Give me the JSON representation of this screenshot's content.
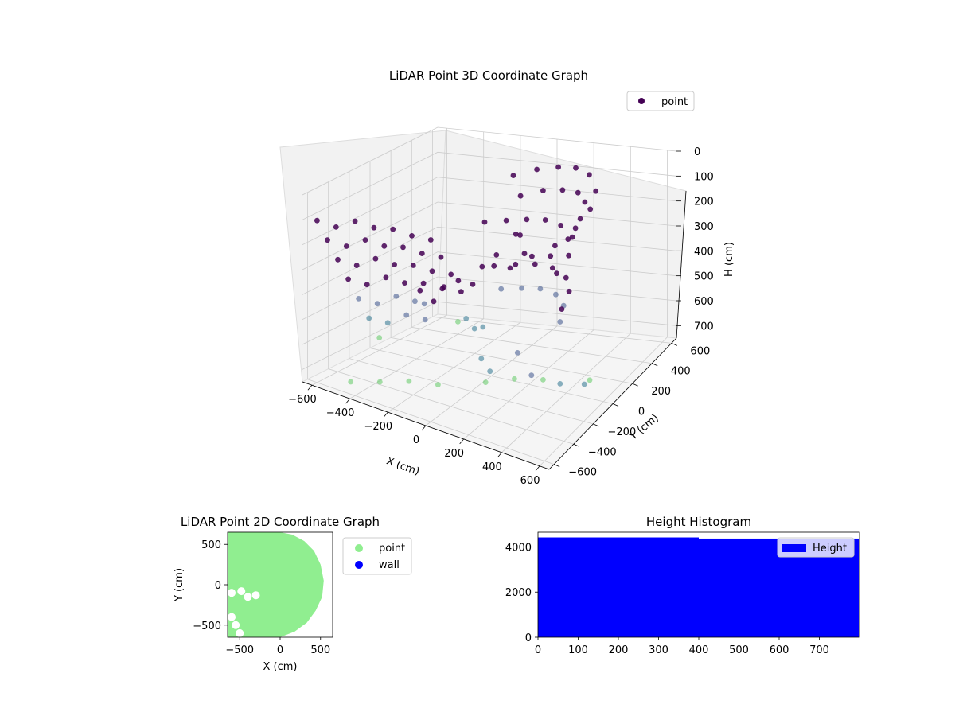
{
  "colors": {
    "background": "#ffffff",
    "pane": "#f2f2f2",
    "grid": "#cccccc",
    "point_top": "#440154",
    "point_mid": "#31688e",
    "point_low": "#35b779",
    "scatter2d_point": "#90ee90",
    "scatter2d_wall": "#0000ff",
    "histogram": "#0000ff"
  },
  "chart_data": [
    {
      "type": "scatter3d",
      "title": "LiDAR Point 3D Coordinate Graph",
      "xlabel": "X (cm)",
      "ylabel": "Y (cm)",
      "zlabel": "H (cm)",
      "xlim": [
        -650,
        650
      ],
      "ylim": [
        -650,
        650
      ],
      "zlim": [
        750,
        0
      ],
      "z_axis_inverted": true,
      "xticks": [
        "−600",
        "−400",
        "−200",
        "0",
        "200",
        "400",
        "600"
      ],
      "yticks": [
        "−600",
        "−400",
        "−200",
        "0",
        "200",
        "400",
        "600"
      ],
      "zticks": [
        "0",
        "100",
        "200",
        "300",
        "400",
        "500",
        "600",
        "700"
      ],
      "legend": {
        "position": "top-right",
        "entries": [
          {
            "label": "point",
            "color": "#440154"
          }
        ]
      },
      "colormap": "viridis",
      "series": [
        {
          "name": "point",
          "description_free": true,
          "points": [
            [
              -600,
              -600,
              100
            ],
            [
              -600,
              -500,
              200
            ],
            [
              -600,
              -400,
              300
            ],
            [
              -600,
              -300,
              400
            ],
            [
              -600,
              -200,
              500
            ],
            [
              -600,
              -100,
              600
            ],
            [
              -600,
              0,
              700
            ],
            [
              -500,
              -600,
              100
            ],
            [
              -500,
              -500,
              200
            ],
            [
              -500,
              -400,
              300
            ],
            [
              -500,
              -300,
              400
            ],
            [
              -500,
              -200,
              500
            ],
            [
              -500,
              -100,
              600
            ],
            [
              -400,
              -600,
              50
            ],
            [
              -400,
              -500,
              150
            ],
            [
              -400,
              -400,
              250
            ],
            [
              -400,
              -300,
              350
            ],
            [
              -400,
              -200,
              450
            ],
            [
              -400,
              -100,
              550
            ],
            [
              -300,
              -600,
              50
            ],
            [
              -300,
              -500,
              150
            ],
            [
              -300,
              -400,
              250
            ],
            [
              -300,
              -300,
              350
            ],
            [
              -300,
              -200,
              450
            ],
            [
              -300,
              -100,
              550
            ],
            [
              -200,
              -600,
              30
            ],
            [
              -200,
              -500,
              130
            ],
            [
              -200,
              -400,
              230
            ],
            [
              -200,
              -300,
              330
            ],
            [
              -200,
              -200,
              430
            ],
            [
              -100,
              -600,
              30
            ],
            [
              -100,
              -500,
              130
            ],
            [
              -100,
              -400,
              230
            ],
            [
              -100,
              -300,
              330
            ],
            [
              0,
              -600,
              20
            ],
            [
              0,
              -500,
              120
            ],
            [
              0,
              -400,
              220
            ],
            [
              0,
              -300,
              320
            ],
            [
              -100,
              400,
              80
            ],
            [
              0,
              450,
              60
            ],
            [
              100,
              480,
              50
            ],
            [
              200,
              470,
              40
            ],
            [
              300,
              420,
              40
            ],
            [
              400,
              300,
              50
            ],
            [
              450,
              150,
              60
            ],
            [
              450,
              0,
              80
            ],
            [
              420,
              -150,
              100
            ],
            [
              350,
              -250,
              120
            ],
            [
              -50,
              380,
              150
            ],
            [
              50,
              420,
              130
            ],
            [
              150,
              430,
              120
            ],
            [
              250,
              400,
              110
            ],
            [
              330,
              320,
              110
            ],
            [
              380,
              180,
              120
            ],
            [
              400,
              20,
              140
            ],
            [
              380,
              -120,
              160
            ],
            [
              -200,
              300,
              250
            ],
            [
              -100,
              330,
              240
            ],
            [
              0,
              350,
              230
            ],
            [
              100,
              350,
              220
            ],
            [
              200,
              320,
              220
            ],
            [
              300,
              250,
              230
            ],
            [
              350,
              120,
              250
            ],
            [
              360,
              -20,
              270
            ],
            [
              100,
              100,
              200
            ],
            [
              150,
              50,
              250
            ],
            [
              50,
              150,
              220
            ],
            [
              100,
              0,
              300
            ],
            [
              0,
              50,
              280
            ],
            [
              -50,
              0,
              320
            ],
            [
              -200,
              -100,
              400
            ],
            [
              -150,
              -50,
              380
            ],
            [
              -100,
              0,
              400
            ],
            [
              -300,
              -150,
              420
            ],
            [
              -250,
              -200,
              450
            ],
            [
              -150,
              300,
              420
            ],
            [
              -50,
              330,
              410
            ],
            [
              50,
              340,
              400
            ],
            [
              150,
              330,
              400
            ],
            [
              250,
              280,
              410
            ],
            [
              320,
              180,
              420
            ],
            [
              350,
              50,
              440
            ],
            [
              -100,
              280,
              500
            ],
            [
              0,
              300,
              490
            ],
            [
              100,
              300,
              480
            ],
            [
              200,
              270,
              480
            ],
            [
              280,
              200,
              490
            ],
            [
              320,
              90,
              510
            ],
            [
              300,
              -300,
              500
            ],
            [
              400,
              -350,
              550
            ],
            [
              500,
              -250,
              600
            ],
            [
              550,
              -100,
              650
            ],
            [
              500,
              50,
              700
            ],
            [
              -400,
              400,
              700
            ],
            [
              -300,
              300,
              650
            ],
            [
              -200,
              200,
              650
            ],
            [
              -100,
              100,
              600
            ],
            [
              0,
              -100,
              650
            ],
            [
              100,
              -200,
              650
            ],
            [
              -450,
              -550,
              720
            ],
            [
              -350,
              -450,
              720
            ],
            [
              -250,
              -350,
              720
            ],
            [
              -150,
              -250,
              740
            ],
            [
              50,
              -150,
              720
            ],
            [
              150,
              -50,
              720
            ],
            [
              250,
              50,
              740
            ]
          ]
        }
      ]
    },
    {
      "type": "scatter",
      "title": "LiDAR Point 2D Coordinate Graph",
      "xlabel": "X (cm)",
      "ylabel": "Y (cm)",
      "xlim": [
        -650,
        650
      ],
      "ylim": [
        -650,
        650
      ],
      "xticks": [
        "−500",
        "0",
        "500"
      ],
      "yticks": [
        "−500",
        "0",
        "500"
      ],
      "legend": {
        "position": "outside-right",
        "entries": [
          {
            "label": "point",
            "color": "#90ee90"
          },
          {
            "label": "wall",
            "color": "#0000ff"
          }
        ]
      },
      "series": [
        {
          "name": "point",
          "region_outline": [
            [
              -650,
              650
            ],
            [
              -450,
              650
            ],
            [
              -200,
              660
            ],
            [
              0,
              650
            ],
            [
              150,
              620
            ],
            [
              300,
              540
            ],
            [
              420,
              420
            ],
            [
              500,
              250
            ],
            [
              540,
              50
            ],
            [
              520,
              -150
            ],
            [
              440,
              -320
            ],
            [
              330,
              -470
            ],
            [
              180,
              -580
            ],
            [
              0,
              -650
            ],
            [
              -650,
              -650
            ]
          ],
          "holes": [
            [
              -600,
              -100
            ],
            [
              -480,
              -80
            ],
            [
              -400,
              -150
            ],
            [
              -300,
              -130
            ],
            [
              -600,
              -400
            ],
            [
              -550,
              -500
            ],
            [
              -500,
              -600
            ]
          ]
        },
        {
          "name": "wall",
          "points": []
        }
      ]
    },
    {
      "type": "bar",
      "title": "Height Histogram",
      "legend": {
        "position": "top-right",
        "entries": [
          {
            "label": "Height",
            "color": "#0000ff"
          }
        ]
      },
      "xlim": [
        0,
        800
      ],
      "ylim": [
        0,
        4650
      ],
      "xticks": [
        "0",
        "100",
        "200",
        "300",
        "400",
        "500",
        "600",
        "700"
      ],
      "yticks": [
        "0",
        "2000",
        "4000"
      ],
      "bins": [
        {
          "x0": 0,
          "x1": 400,
          "value": 4420
        },
        {
          "x0": 400,
          "x1": 800,
          "value": 4370
        }
      ]
    }
  ]
}
